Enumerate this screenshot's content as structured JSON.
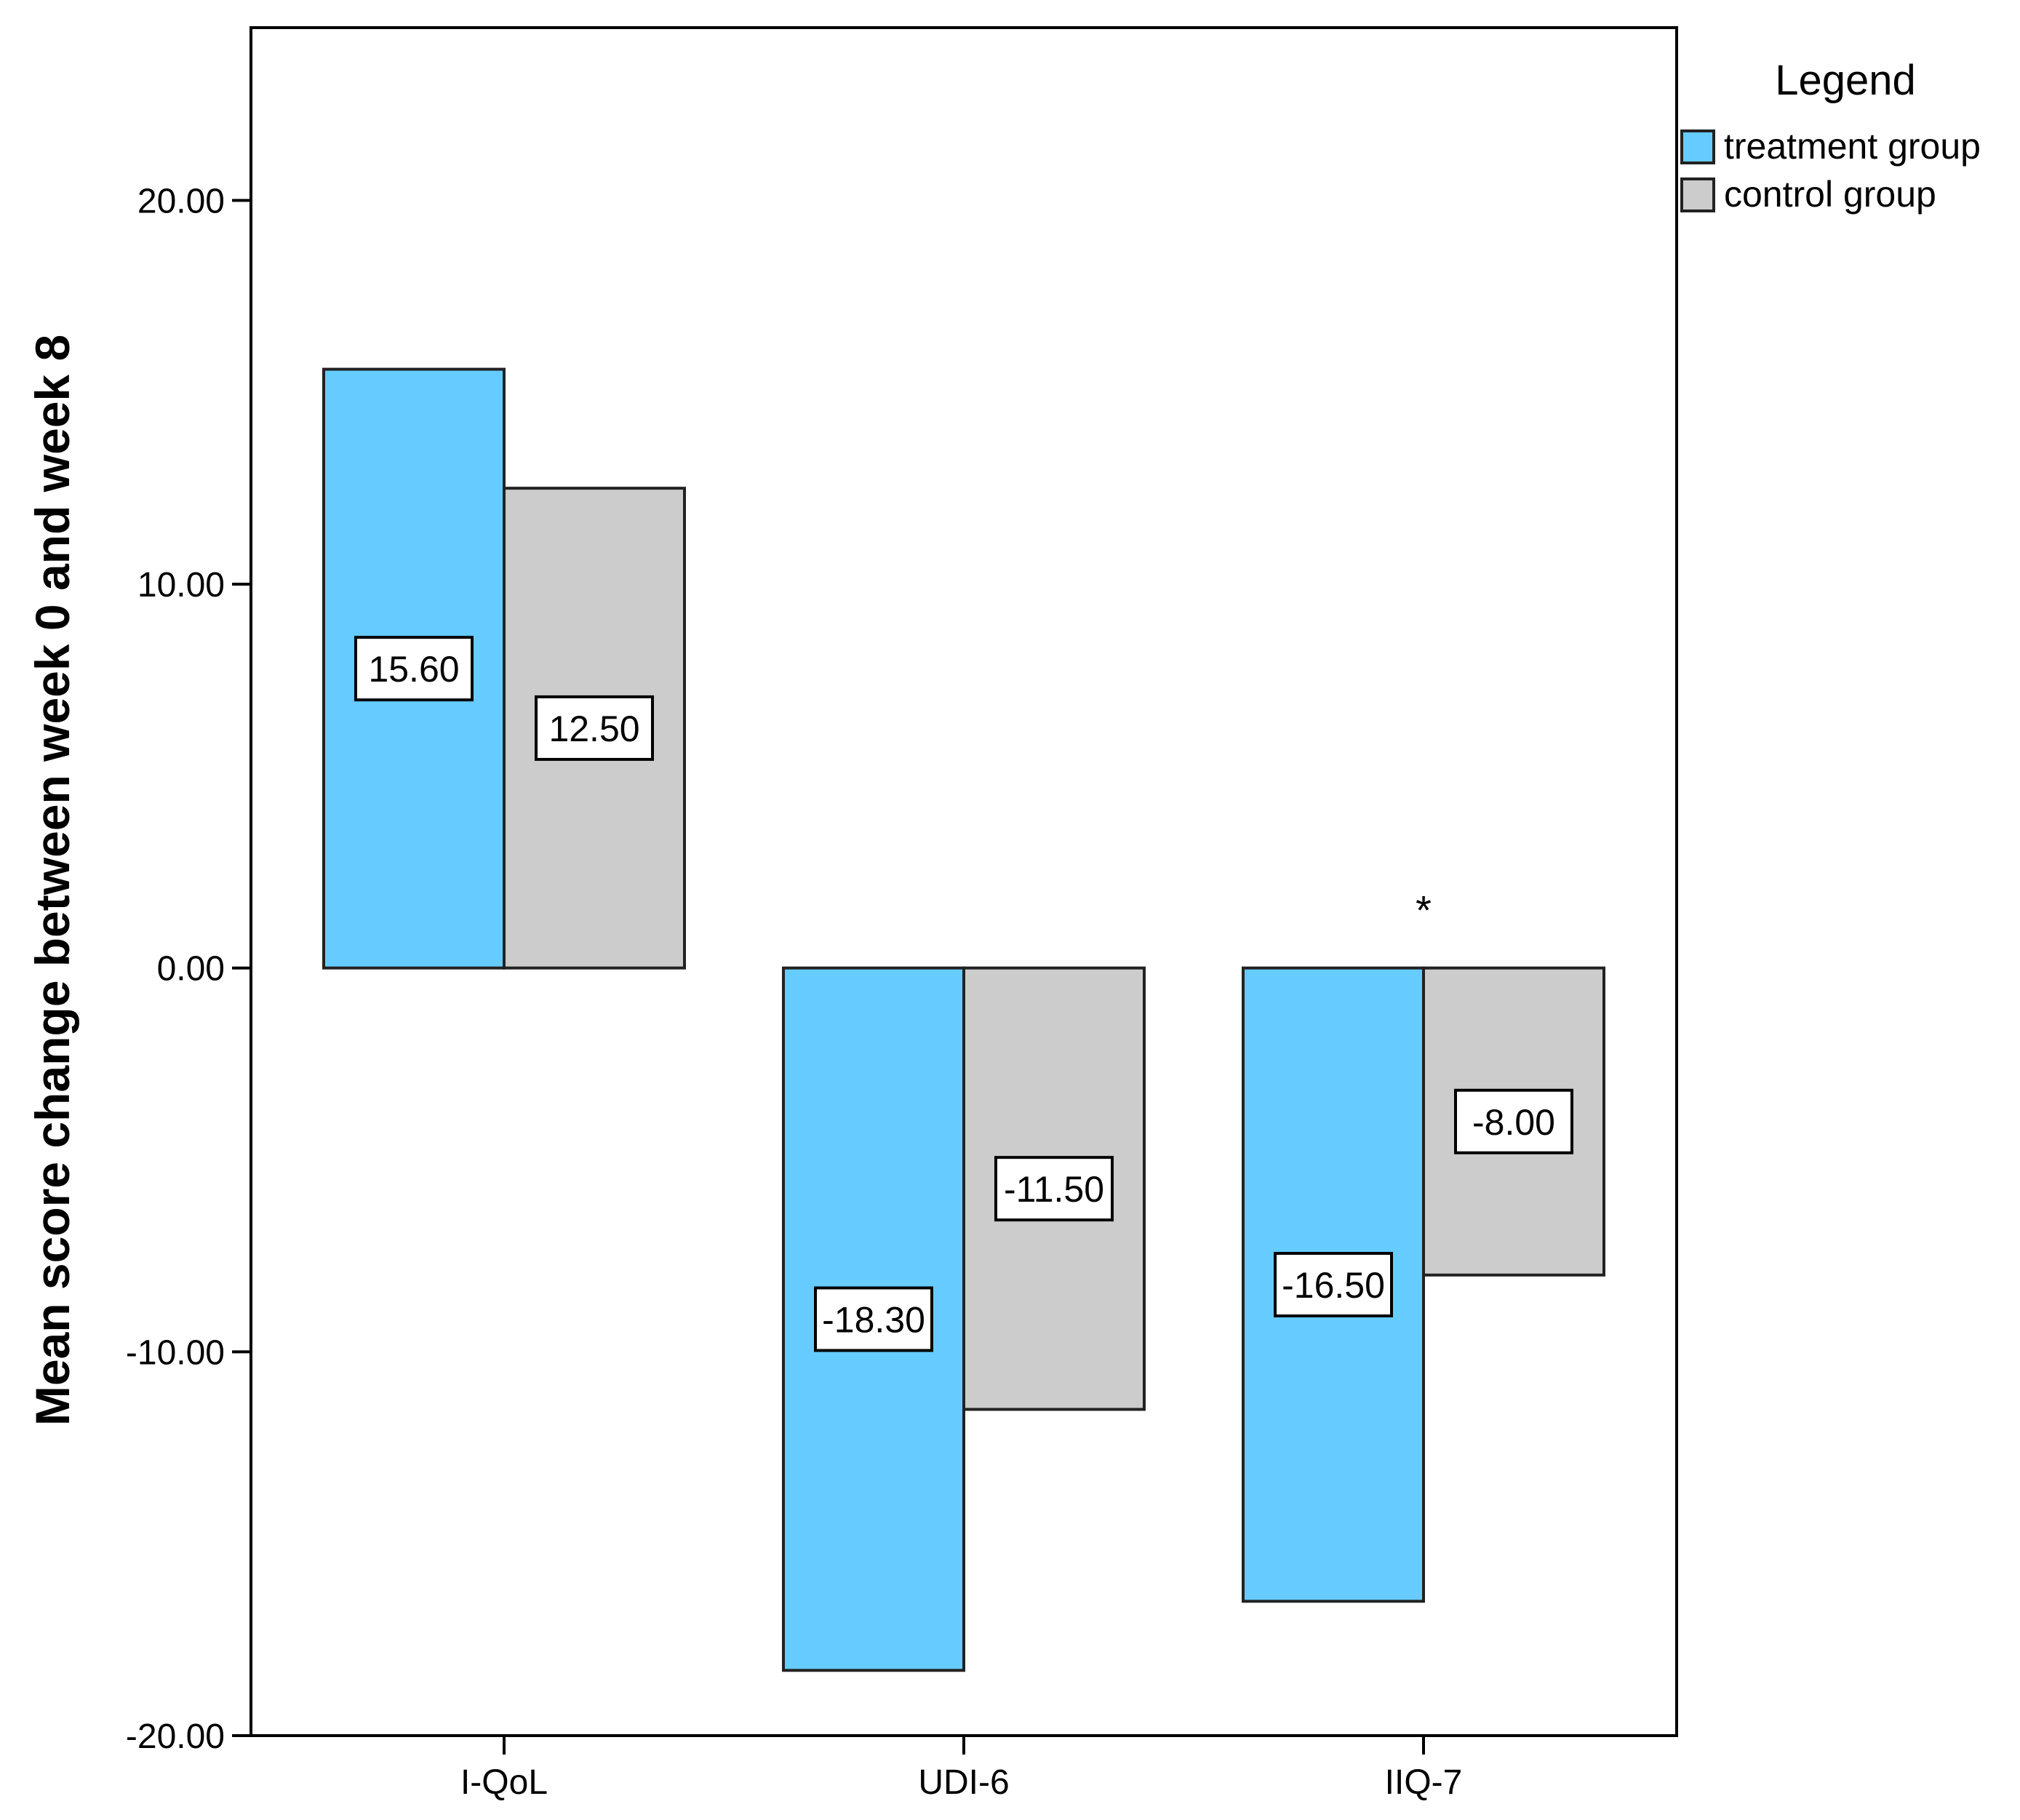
{
  "chart_data": {
    "type": "bar",
    "categories": [
      "I-QoL",
      "UDI-6",
      "IIQ-7"
    ],
    "series": [
      {
        "name": "treatment group",
        "values": [
          15.6,
          -18.3,
          -16.5
        ],
        "color": "#66ccff",
        "labels": [
          "15.60",
          "-18.30",
          "-16.50"
        ]
      },
      {
        "name": "control group",
        "values": [
          12.5,
          -11.5,
          -8.0
        ],
        "color": "#cccccc",
        "labels": [
          "12.50",
          "-11.50",
          "-8.00"
        ]
      }
    ],
    "title": "",
    "xlabel": "",
    "ylabel": "Mean score change between week 0 and week 8",
    "ylim": [
      -20,
      24.5
    ],
    "yticks": [
      20,
      10,
      0,
      -10,
      -20
    ],
    "ytick_labels": [
      "20.00",
      "10.00",
      "0.00",
      "-10.00",
      "-20.00"
    ],
    "grid": false,
    "legend": {
      "title": "Legend",
      "position": "right-top"
    },
    "annotations": [
      {
        "text": "*",
        "category": "IIQ-7"
      }
    ]
  }
}
